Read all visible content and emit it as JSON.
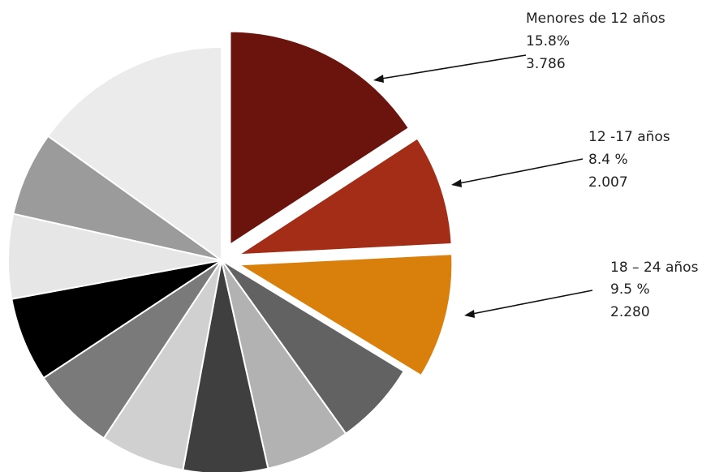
{
  "chart_data": {
    "type": "pie",
    "title": "",
    "slices": [
      {
        "label": "Menores de 12 años",
        "percent": 15.8,
        "value": "3.786",
        "color": "#6b140d",
        "highlighted": true
      },
      {
        "label": "12 -17 años",
        "percent": 8.4,
        "value": "2.007",
        "color": "#a32d16",
        "highlighted": true
      },
      {
        "label": "18 – 24 años",
        "percent": 9.5,
        "value": "2.280",
        "color": "#d97f0c",
        "highlighted": true
      },
      {
        "label": "",
        "percent": 6.4,
        "color": "#626262",
        "highlighted": false
      },
      {
        "label": "",
        "percent": 6.4,
        "color": "#b2b2b2",
        "highlighted": false
      },
      {
        "label": "",
        "percent": 6.4,
        "color": "#3f3f3f",
        "highlighted": false
      },
      {
        "label": "",
        "percent": 6.4,
        "color": "#d0d0d0",
        "highlighted": false
      },
      {
        "label": "",
        "percent": 6.4,
        "color": "#7a7a7a",
        "highlighted": false
      },
      {
        "label": "",
        "percent": 6.4,
        "color": "#000000",
        "highlighted": false
      },
      {
        "label": "",
        "percent": 6.4,
        "color": "#e6e6e6",
        "highlighted": false
      },
      {
        "label": "",
        "percent": 6.4,
        "color": "#9b9b9b",
        "highlighted": false
      },
      {
        "label": "",
        "percent": 15.1,
        "color": "#ebebeb",
        "highlighted": false
      }
    ],
    "callouts": [
      {
        "label": "Menores de 12 años",
        "percent": "15.8%",
        "value": "3.786"
      },
      {
        "label": "12 -17 años",
        "percent": "8.4 %",
        "value": "2.007"
      },
      {
        "label": "18 – 24 años",
        "percent": "9.5 %",
        "value": "2.280"
      }
    ]
  }
}
